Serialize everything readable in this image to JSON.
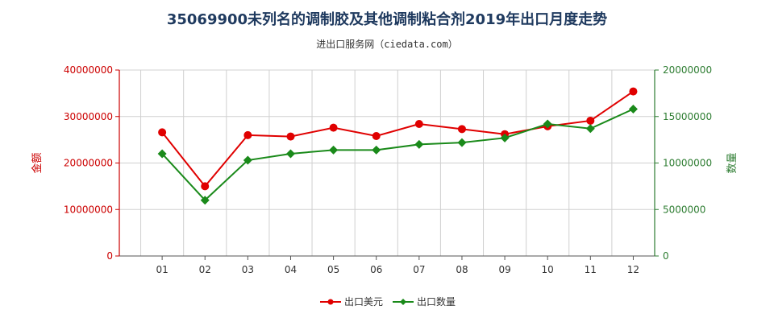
{
  "chart_data": {
    "type": "line",
    "title": "35069900未列名的调制胶及其他调制粘合剂2019年出口月度走势",
    "subtitle": "进出口服务网（ciedata.com）",
    "categories": [
      "01",
      "02",
      "03",
      "04",
      "05",
      "06",
      "07",
      "08",
      "09",
      "10",
      "11",
      "12"
    ],
    "y_left": {
      "label": "金额",
      "ylim": [
        0,
        40000000
      ],
      "ticks": [
        0,
        10000000,
        20000000,
        30000000,
        40000000
      ],
      "tick_labels": [
        "0",
        "10000000",
        "20000000",
        "30000000",
        "40000000"
      ],
      "color": "#cc0000"
    },
    "y_right": {
      "label": "数量",
      "ylim": [
        0,
        20000000
      ],
      "ticks": [
        0,
        5000000,
        10000000,
        15000000,
        20000000
      ],
      "tick_labels": [
        "0",
        "5000000",
        "10000000",
        "15000000",
        "20000000"
      ],
      "color": "#2e7d32"
    },
    "series": [
      {
        "name": "出口美元",
        "axis": "left",
        "color": "#e00000",
        "marker": "circle",
        "values": [
          26600000,
          15000000,
          26000000,
          25700000,
          27600000,
          25800000,
          28400000,
          27300000,
          26200000,
          27900000,
          29100000,
          35400000
        ]
      },
      {
        "name": "出口数量",
        "axis": "right",
        "color": "#1a8a1a",
        "marker": "diamond",
        "values": [
          11000000,
          6000000,
          10300000,
          11000000,
          11400000,
          11400000,
          12000000,
          12200000,
          12700000,
          14200000,
          13700000,
          15800000
        ]
      }
    ],
    "grid": true,
    "legend_position": "bottom-center"
  }
}
